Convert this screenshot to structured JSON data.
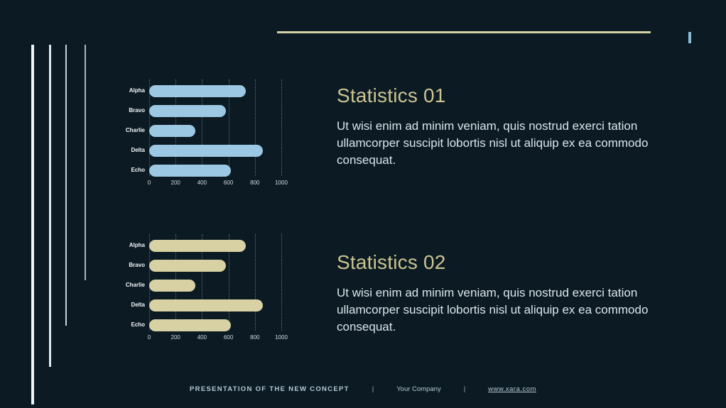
{
  "slide": {
    "background": "#0b1a23",
    "accent_tan": "#d6d0a2",
    "accent_blue": "#8abbd8",
    "title_color": "#cbc490",
    "body_color": "#dce6ec",
    "footer_color": "#b5cad6"
  },
  "sections": [
    {
      "title": "Statistics 01",
      "body": "Ut wisi enim ad minim veniam, quis nostrud exerci tation ullamcorper suscipit lobortis nisl ut aliquip ex ea commodo consequat."
    },
    {
      "title": "Statistics 02",
      "body": "Ut wisi enim ad minim veniam, quis nostrud exerci tation ullamcorper suscipit lobortis nisl ut aliquip ex ea commodo consequat."
    }
  ],
  "footer": {
    "concept": "PRESENTATION OF THE NEW CONCEPT",
    "separator": "|",
    "company": "Your Company",
    "link": "www.xara.com"
  },
  "chart_data": [
    {
      "type": "bar",
      "orientation": "horizontal",
      "title": "",
      "categories": [
        "Alpha",
        "Bravo",
        "Charlie",
        "Delta",
        "Echo"
      ],
      "values": [
        730,
        580,
        350,
        860,
        620
      ],
      "bar_color": "#9dc8e3",
      "xlim": [
        0,
        1000
      ],
      "xticks": [
        0,
        200,
        400,
        600,
        800,
        1000
      ],
      "grid": "dotted-vertical",
      "legend": "none"
    },
    {
      "type": "bar",
      "orientation": "horizontal",
      "title": "",
      "categories": [
        "Alpha",
        "Bravo",
        "Charlie",
        "Delta",
        "Echo"
      ],
      "values": [
        730,
        580,
        350,
        860,
        620
      ],
      "bar_color": "#d8d1a3",
      "xlim": [
        0,
        1000
      ],
      "xticks": [
        0,
        200,
        400,
        600,
        800,
        1000
      ],
      "grid": "dotted-vertical",
      "legend": "none"
    }
  ]
}
